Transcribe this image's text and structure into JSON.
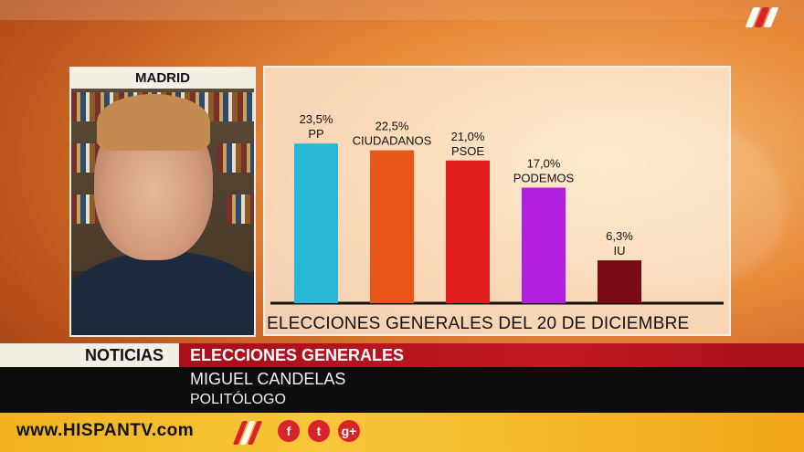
{
  "video": {
    "location_label": "MADRID"
  },
  "chart_data": {
    "type": "bar",
    "title": "ELECCIONES GENERALES DEL 20 DE DICIEMBRE",
    "categories": [
      "PP",
      "CIUDADANOS",
      "PSOE",
      "PODEMOS",
      "IU"
    ],
    "values": [
      23.5,
      22.5,
      21.0,
      17.0,
      6.3
    ],
    "value_labels": [
      "23,5%",
      "22,5%",
      "21,0%",
      "17,0%",
      "6,3%"
    ],
    "colors": [
      "#29b6d8",
      "#e8561b",
      "#e01c1c",
      "#b31ee0",
      "#7a0a12"
    ],
    "ylim": [
      0,
      25
    ],
    "grid": false,
    "legend": "none"
  },
  "ticker": {
    "section": "NOTICIAS",
    "topic": "ELECCIONES GENERALES"
  },
  "guest": {
    "name": "MIGUEL CANDELAS",
    "role": "POLITÓLOGO"
  },
  "footer": {
    "website": "www.HISPANTV.com",
    "social": [
      {
        "name": "facebook-icon",
        "glyph": "f",
        "color": "#d9232b"
      },
      {
        "name": "twitter-icon",
        "glyph": "t",
        "color": "#d9232b"
      },
      {
        "name": "google-plus-icon",
        "glyph": "g+",
        "color": "#d9232b"
      }
    ]
  }
}
